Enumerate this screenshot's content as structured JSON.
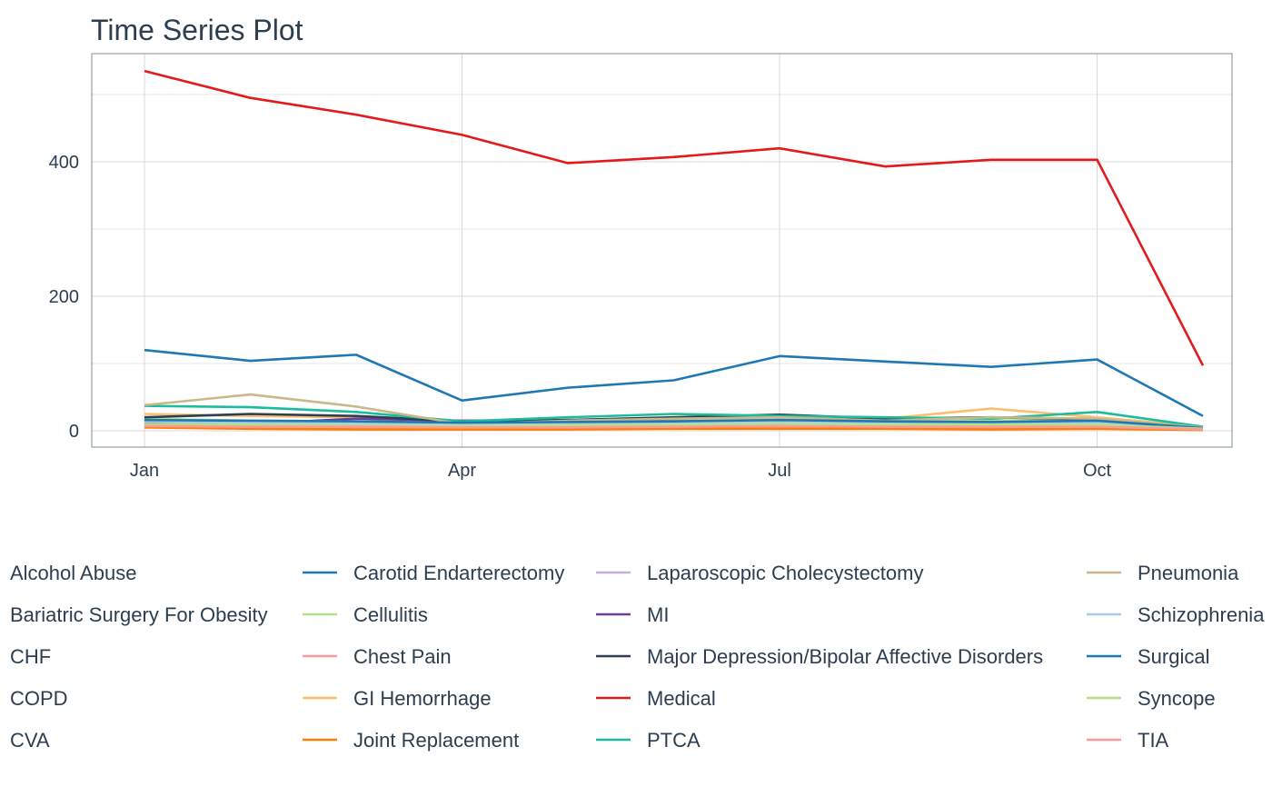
{
  "chart_data": {
    "type": "line",
    "title": "Time Series Plot",
    "xlabel": "",
    "ylabel": "",
    "x_tick_labels": [
      "Jan",
      "Apr",
      "Jul",
      "Oct"
    ],
    "x_tick_months": [
      1,
      4,
      7,
      10
    ],
    "y_ticks": [
      0,
      200,
      400
    ],
    "xlim": [
      1,
      11
    ],
    "ylim": [
      -25,
      560
    ],
    "grid": true,
    "legend_position": "bottom",
    "x": [
      1,
      2,
      3,
      4,
      5,
      6,
      7,
      8,
      9,
      10,
      11
    ],
    "series": [
      {
        "name": "Alcohol Abuse",
        "color": "#2a8a8a",
        "values": [
          12,
          10,
          12,
          8,
          9,
          10,
          12,
          10,
          11,
          10,
          4
        ]
      },
      {
        "name": "Bariatric Surgery For Obesity",
        "color": "#2ca25f",
        "values": [
          8,
          7,
          7,
          6,
          6,
          6,
          7,
          7,
          6,
          6,
          2
        ]
      },
      {
        "name": "CHF",
        "color": "#33a02c",
        "values": [
          15,
          12,
          11,
          10,
          12,
          14,
          15,
          13,
          12,
          14,
          4
        ]
      },
      {
        "name": "COPD",
        "color": "#1b9e77",
        "values": [
          10,
          9,
          8,
          7,
          8,
          9,
          10,
          9,
          9,
          9,
          3
        ]
      },
      {
        "name": "CVA",
        "color": "#66a61e",
        "values": [
          14,
          13,
          12,
          9,
          10,
          11,
          13,
          12,
          11,
          12,
          4
        ]
      },
      {
        "name": "Carotid Endarterectomy",
        "color": "#1f78b4",
        "values": [
          120,
          104,
          113,
          45,
          64,
          75,
          111,
          103,
          95,
          106,
          22
        ]
      },
      {
        "name": "Cellulitis",
        "color": "#b2df8a",
        "values": [
          18,
          15,
          14,
          12,
          14,
          16,
          18,
          16,
          15,
          17,
          5
        ]
      },
      {
        "name": "Chest Pain",
        "color": "#fb9a99",
        "values": [
          6,
          5,
          5,
          4,
          5,
          5,
          6,
          5,
          5,
          6,
          2
        ]
      },
      {
        "name": "GI Hemorrhage",
        "color": "#fdbf6f",
        "values": [
          25,
          22,
          20,
          10,
          15,
          18,
          20,
          18,
          33,
          20,
          6
        ]
      },
      {
        "name": "Joint Replacement",
        "color": "#ff7f00",
        "values": [
          5,
          3,
          2,
          2,
          2,
          3,
          3,
          3,
          2,
          3,
          1
        ]
      },
      {
        "name": "Laparoscopic Cholecystectomy",
        "color": "#cab2d6",
        "values": [
          9,
          8,
          8,
          6,
          7,
          8,
          9,
          8,
          8,
          8,
          3
        ]
      },
      {
        "name": "MI",
        "color": "#6a3d9a",
        "values": [
          11,
          10,
          18,
          15,
          16,
          14,
          15,
          13,
          12,
          6,
          3
        ]
      },
      {
        "name": "Major Depression/Bipolar Affective Disorders",
        "color": "#2c3e50",
        "values": [
          20,
          25,
          22,
          14,
          16,
          20,
          24,
          18,
          20,
          17,
          5
        ]
      },
      {
        "name": "Medical",
        "color": "#e31a1c",
        "values": [
          535,
          495,
          470,
          440,
          398,
          407,
          420,
          393,
          403,
          403,
          97
        ]
      },
      {
        "name": "PTCA",
        "color": "#1abc9c",
        "values": [
          37,
          35,
          28,
          14,
          20,
          25,
          22,
          20,
          18,
          28,
          6
        ]
      },
      {
        "name": "Pneumonia",
        "color": "#c8b88a",
        "values": [
          38,
          54,
          36,
          10,
          15,
          18,
          20,
          15,
          20,
          18,
          5
        ]
      },
      {
        "name": "Schizophrenia",
        "color": "#a6cee3",
        "values": [
          14,
          12,
          11,
          9,
          10,
          12,
          13,
          12,
          11,
          12,
          4
        ]
      },
      {
        "name": "Surgical",
        "color": "#1f78b4",
        "values": [
          16,
          15,
          14,
          12,
          13,
          14,
          16,
          14,
          13,
          15,
          4
        ]
      },
      {
        "name": "Syncope",
        "color": "#b2df8a",
        "values": [
          10,
          9,
          8,
          7,
          8,
          9,
          10,
          9,
          9,
          9,
          3
        ]
      },
      {
        "name": "TIA",
        "color": "#fb9a99",
        "values": [
          7,
          6,
          6,
          5,
          5,
          6,
          7,
          6,
          6,
          6,
          2
        ]
      }
    ]
  }
}
